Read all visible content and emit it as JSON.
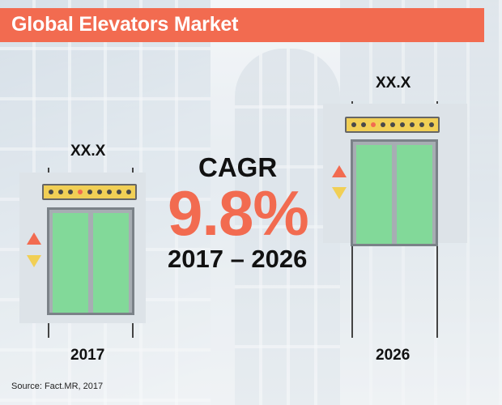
{
  "title": "Global Elevators Market",
  "cagr": {
    "label": "CAGR",
    "value": "9.8%",
    "period": "2017 – 2026"
  },
  "elevators": [
    {
      "year": "2017",
      "value_label": "XX.X",
      "active_dot": 3
    },
    {
      "year": "2026",
      "value_label": "XX.X",
      "active_dot": 2
    }
  ],
  "source": "Source: Fact.MR, 2017",
  "colors": {
    "banner": "#f26b50",
    "cagr_value": "#f26b50",
    "door": "#82d999",
    "indicator": "#f1cf55",
    "arrow_up": "#f26b50",
    "arrow_down": "#f1cf55"
  },
  "icons": [
    "elevator-icon",
    "up-arrow-icon",
    "down-arrow-icon"
  ]
}
